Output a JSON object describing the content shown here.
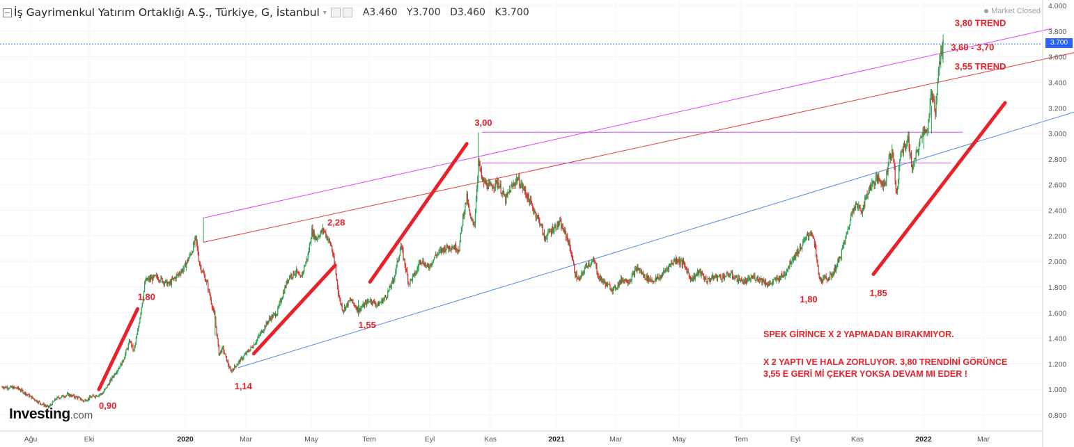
{
  "header": {
    "symbol": "İş Gayrimenkul Yatırım Ortaklığı A.Ş., Türkiye, G, İstanbul",
    "caret": "▾",
    "ohlc": {
      "open": "A3.460",
      "high": "Y3.700",
      "low": "D3.460",
      "close": "K3.700"
    },
    "market_status": "Market Closed"
  },
  "logo": {
    "main": "Investing",
    "suffix": ".com"
  },
  "last_price_label": "3.700",
  "annotations": {
    "note1": "SPEK GİRİNCE X 2 YAPMADAN BIRAKMIYOR.",
    "note2": "X 2 YAPTI VE HALA ZORLUYOR. 3,80 TRENDİNİ GÖRÜNCE",
    "note3": "3,55 E GERİ Mİ ÇEKER YOKSA DEVAM MI EDER !"
  },
  "chart_data": {
    "type": "candlestick",
    "title": "İş Gayrimenkul Yatırım Ortaklığı A.Ş., Türkiye, G, İstanbul",
    "period": "daily",
    "y_axis": {
      "min": 0.7,
      "max": 4.0,
      "ticks": [
        "4.000",
        "3.800",
        "3.600",
        "3.400",
        "3.200",
        "3.000",
        "2.800",
        "2.600",
        "2.400",
        "2.200",
        "2.000",
        "1.800",
        "1.600",
        "1.400",
        "1.200",
        "1.000",
        "0.800"
      ],
      "last_price": 3.7
    },
    "x_axis": {
      "labels": [
        "Ağu",
        "Eki",
        "2020",
        "Mar",
        "May",
        "Tem",
        "Eyl",
        "Kas",
        "2021",
        "Mar",
        "May",
        "Tem",
        "Eyl",
        "Kas",
        "2022",
        "Mar"
      ],
      "bold_labels": [
        "2020",
        "2021",
        "2022"
      ]
    },
    "price_path": [
      [
        0,
        1.02
      ],
      [
        4,
        1.01
      ],
      [
        7,
        0.95
      ],
      [
        10,
        0.89
      ],
      [
        12,
        0.86
      ],
      [
        14,
        0.93
      ],
      [
        17,
        0.96
      ],
      [
        20,
        0.93
      ],
      [
        21,
        0.91
      ],
      [
        23,
        0.94
      ],
      [
        26,
        0.97
      ],
      [
        29,
        1.12
      ],
      [
        31,
        1.21
      ],
      [
        33,
        1.38
      ],
      [
        34,
        1.3
      ],
      [
        35,
        1.45
      ],
      [
        37,
        1.85
      ],
      [
        40,
        1.88
      ],
      [
        43,
        1.82
      ],
      [
        47,
        1.95
      ],
      [
        49,
        2.08
      ],
      [
        50,
        2.18
      ],
      [
        51,
        1.98
      ],
      [
        53,
        1.82
      ],
      [
        55,
        1.55
      ],
      [
        56,
        1.28
      ],
      [
        57,
        1.32
      ],
      [
        59,
        1.14
      ],
      [
        61,
        1.21
      ],
      [
        63,
        1.28
      ],
      [
        65,
        1.35
      ],
      [
        67,
        1.45
      ],
      [
        69,
        1.55
      ],
      [
        71,
        1.6
      ],
      [
        72,
        1.7
      ],
      [
        74,
        1.88
      ],
      [
        76,
        1.92
      ],
      [
        77,
        1.86
      ],
      [
        79,
        2.05
      ],
      [
        80,
        2.24
      ],
      [
        81,
        2.18
      ],
      [
        83,
        2.25
      ],
      [
        85,
        2.12
      ],
      [
        86,
        1.95
      ],
      [
        87,
        1.72
      ],
      [
        88,
        1.62
      ],
      [
        90,
        1.7
      ],
      [
        92,
        1.62
      ],
      [
        95,
        1.7
      ],
      [
        97,
        1.66
      ],
      [
        99,
        1.72
      ],
      [
        101,
        1.85
      ],
      [
        103,
        2.12
      ],
      [
        104,
        1.98
      ],
      [
        105,
        1.83
      ],
      [
        107,
        1.92
      ],
      [
        108,
        2.02
      ],
      [
        110,
        1.95
      ],
      [
        112,
        2.05
      ],
      [
        114,
        2.1
      ],
      [
        116,
        2.12
      ],
      [
        118,
        2.1
      ],
      [
        119,
        2.35
      ],
      [
        120,
        2.5
      ],
      [
        121,
        2.32
      ],
      [
        122,
        2.3
      ],
      [
        123,
        2.78
      ],
      [
        124,
        2.63
      ],
      [
        126,
        2.58
      ],
      [
        128,
        2.62
      ],
      [
        130,
        2.48
      ],
      [
        131,
        2.55
      ],
      [
        133,
        2.65
      ],
      [
        135,
        2.55
      ],
      [
        137,
        2.42
      ],
      [
        139,
        2.3
      ],
      [
        140,
        2.18
      ],
      [
        142,
        2.25
      ],
      [
        144,
        2.3
      ],
      [
        146,
        2.18
      ],
      [
        147,
        2.06
      ],
      [
        148,
        1.9
      ],
      [
        149,
        1.85
      ],
      [
        151,
        1.98
      ],
      [
        153,
        2.0
      ],
      [
        154,
        1.88
      ],
      [
        156,
        1.82
      ],
      [
        158,
        1.78
      ],
      [
        160,
        1.86
      ],
      [
        162,
        1.85
      ],
      [
        164,
        1.95
      ],
      [
        166,
        1.88
      ],
      [
        168,
        1.85
      ],
      [
        170,
        1.88
      ],
      [
        172,
        1.96
      ],
      [
        174,
        2.02
      ],
      [
        176,
        1.98
      ],
      [
        178,
        1.86
      ],
      [
        180,
        1.92
      ],
      [
        182,
        1.85
      ],
      [
        184,
        1.88
      ],
      [
        186,
        1.88
      ],
      [
        188,
        1.9
      ],
      [
        190,
        1.86
      ],
      [
        192,
        1.84
      ],
      [
        194,
        1.88
      ],
      [
        196,
        1.86
      ],
      [
        198,
        1.82
      ],
      [
        200,
        1.86
      ],
      [
        202,
        1.9
      ],
      [
        204,
        2.02
      ],
      [
        206,
        2.1
      ],
      [
        208,
        2.2
      ],
      [
        209,
        2.24
      ],
      [
        210,
        2.1
      ],
      [
        211,
        1.86
      ],
      [
        212,
        1.86
      ],
      [
        214,
        1.88
      ],
      [
        216,
        2.0
      ],
      [
        218,
        2.2
      ],
      [
        220,
        2.45
      ],
      [
        222,
        2.4
      ],
      [
        224,
        2.58
      ],
      [
        226,
        2.65
      ],
      [
        228,
        2.6
      ],
      [
        229,
        2.82
      ],
      [
        230,
        2.85
      ],
      [
        231,
        2.52
      ],
      [
        232,
        2.84
      ],
      [
        233,
        2.9
      ],
      [
        234,
        2.95
      ],
      [
        235,
        2.72
      ],
      [
        236,
        2.82
      ],
      [
        238,
        3.05
      ],
      [
        239,
        3.0
      ],
      [
        240,
        3.35
      ],
      [
        241,
        3.18
      ],
      [
        242,
        3.55
      ],
      [
        243,
        3.7
      ]
    ],
    "overlays": {
      "magenta_channel_top": {
        "from": [
          52,
          2.34
        ],
        "to": [
          271,
          3.82
        ],
        "label": "3,80 TREND"
      },
      "red_trend": {
        "from": [
          52,
          2.15
        ],
        "to": [
          281,
          3.66
        ],
        "label": "3,55 TREND"
      },
      "blue_support": {
        "from": [
          61,
          1.17
        ],
        "to": [
          289,
          3.28
        ]
      },
      "resistance_3_00": {
        "from": [
          124,
          3.01
        ],
        "to": [
          248,
          3.01
        ]
      },
      "resistance_2_78": {
        "from": [
          124,
          2.77
        ],
        "to": [
          245,
          2.77
        ]
      },
      "thick_red_arrows": [
        {
          "from": [
            25,
            1.0
          ],
          "to": [
            35,
            1.63
          ]
        },
        {
          "from": [
            65,
            1.28
          ],
          "to": [
            86,
            1.97
          ]
        },
        {
          "from": [
            95,
            1.84
          ],
          "to": [
            120,
            2.92
          ]
        },
        {
          "from": [
            225,
            1.9
          ],
          "to": [
            259,
            3.24
          ]
        }
      ]
    },
    "point_labels": [
      {
        "text": "3,80 TREND",
        "x": 246,
        "y": 3.84
      },
      {
        "text": "3,60 - 3,70",
        "x": 245,
        "y": 3.65
      },
      {
        "text": "3,55 TREND",
        "x": 246,
        "y": 3.5
      },
      {
        "text": "3,00",
        "x": 122,
        "y": 3.06
      },
      {
        "text": "2,28",
        "x": 84,
        "y": 2.28
      },
      {
        "text": "1,80",
        "x": 35,
        "y": 1.7
      },
      {
        "text": "1,55",
        "x": 92,
        "y": 1.48
      },
      {
        "text": "1,14",
        "x": 60,
        "y": 1.0
      },
      {
        "text": "0,90",
        "x": 25,
        "y": 0.85
      },
      {
        "text": "1,80",
        "x": 206,
        "y": 1.68
      },
      {
        "text": "1,85",
        "x": 224,
        "y": 1.73
      }
    ]
  }
}
